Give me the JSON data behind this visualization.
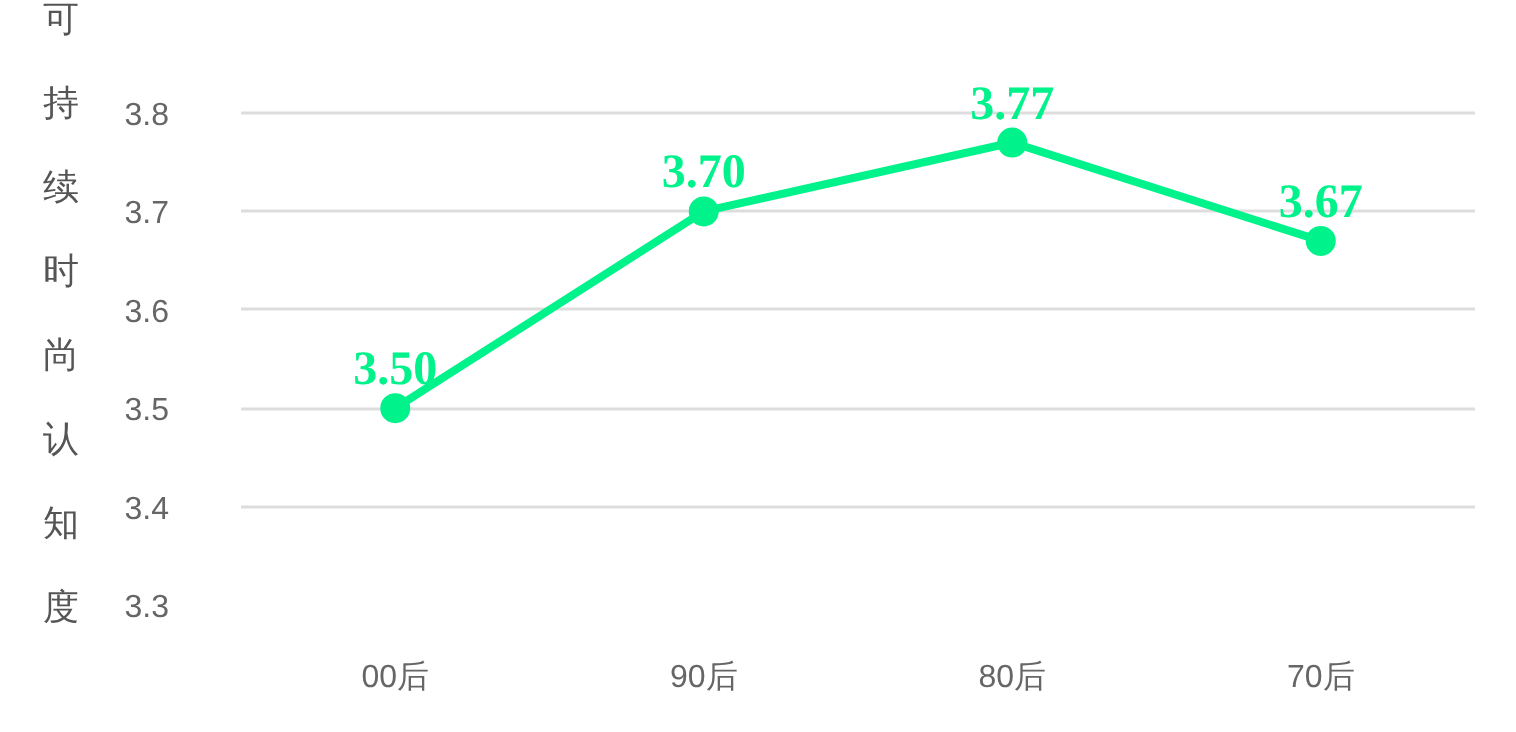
{
  "chart_data": {
    "type": "line",
    "ylabel": "可持续时尚认知度",
    "categories": [
      "00后",
      "90后",
      "80后",
      "70后"
    ],
    "series": [
      {
        "color": "#00f28a",
        "values": [
          3.5,
          3.7,
          3.77,
          3.67
        ],
        "value_labels": [
          "3.50",
          "3.70",
          "3.77",
          "3.67"
        ]
      }
    ],
    "ylim": [
      3.3,
      3.8
    ],
    "yticks": [
      3.3,
      3.4,
      3.5,
      3.6,
      3.7,
      3.8
    ],
    "grid": "y",
    "marker": "circle",
    "line_style": "solid",
    "data_labels": true
  }
}
